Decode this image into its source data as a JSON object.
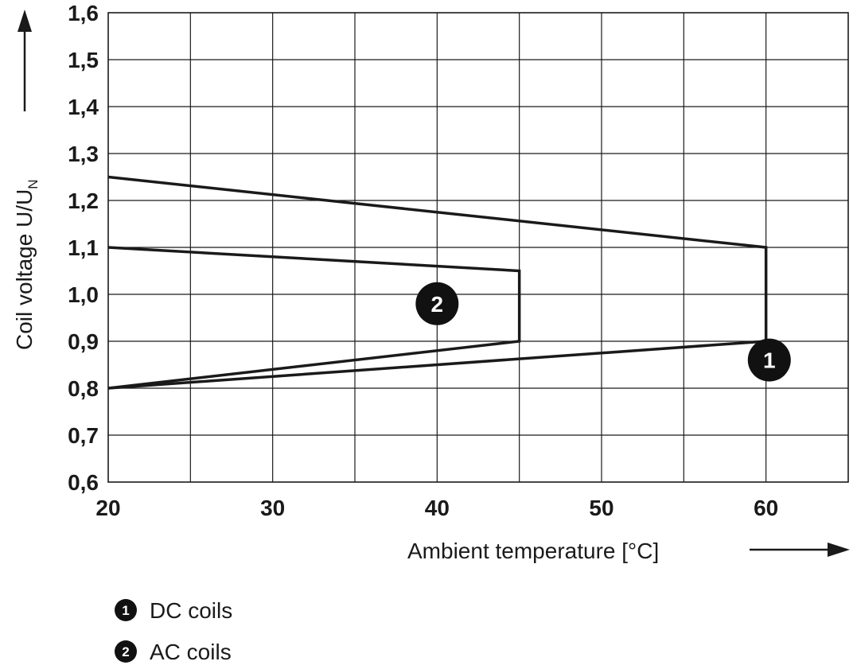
{
  "chart_data": {
    "type": "line",
    "xlabel": "Ambient temperature [°C]",
    "ylabel_main": "Coil voltage U/U",
    "ylabel_subscript": "N",
    "xlim": [
      20,
      65
    ],
    "ylim": [
      0.6,
      1.6
    ],
    "x_grid_step": 5,
    "y_grid_step": 0.1,
    "grid": true,
    "x_ticks": [
      {
        "value": 20,
        "label": "20"
      },
      {
        "value": 30,
        "label": "30"
      },
      {
        "value": 40,
        "label": "40"
      },
      {
        "value": 50,
        "label": "50"
      },
      {
        "value": 60,
        "label": "60"
      }
    ],
    "y_ticks": [
      {
        "value": 0.6,
        "label": "0,6"
      },
      {
        "value": 0.7,
        "label": "0,7"
      },
      {
        "value": 0.8,
        "label": "0,8"
      },
      {
        "value": 0.9,
        "label": "0,9"
      },
      {
        "value": 1.0,
        "label": "1,0"
      },
      {
        "value": 1.1,
        "label": "1,1"
      },
      {
        "value": 1.2,
        "label": "1,2"
      },
      {
        "value": 1.3,
        "label": "1,3"
      },
      {
        "value": 1.4,
        "label": "1,4"
      },
      {
        "value": 1.5,
        "label": "1,5"
      },
      {
        "value": 1.6,
        "label": "1,6"
      }
    ],
    "series": [
      {
        "name": "DC coils",
        "marker": "1",
        "points": [
          [
            20,
            1.25
          ],
          [
            60,
            1.1
          ],
          [
            60,
            0.9
          ],
          [
            20,
            0.8
          ]
        ]
      },
      {
        "name": "AC coils",
        "marker": "2",
        "points": [
          [
            20,
            1.1
          ],
          [
            45,
            1.05
          ],
          [
            45,
            0.9
          ],
          [
            20,
            0.8
          ]
        ]
      }
    ],
    "markers": [
      {
        "label": "1",
        "x": 60.2,
        "y": 0.86
      },
      {
        "label": "2",
        "x": 40,
        "y": 0.98
      }
    ],
    "legend": [
      {
        "marker": "1",
        "label": "DC coils"
      },
      {
        "marker": "2",
        "label": "AC coils"
      }
    ],
    "legend_placement": "bottom-left",
    "colors": {
      "line": "#1a1a1a",
      "grid": "#1a1a1a",
      "marker_fill": "#111111"
    }
  }
}
